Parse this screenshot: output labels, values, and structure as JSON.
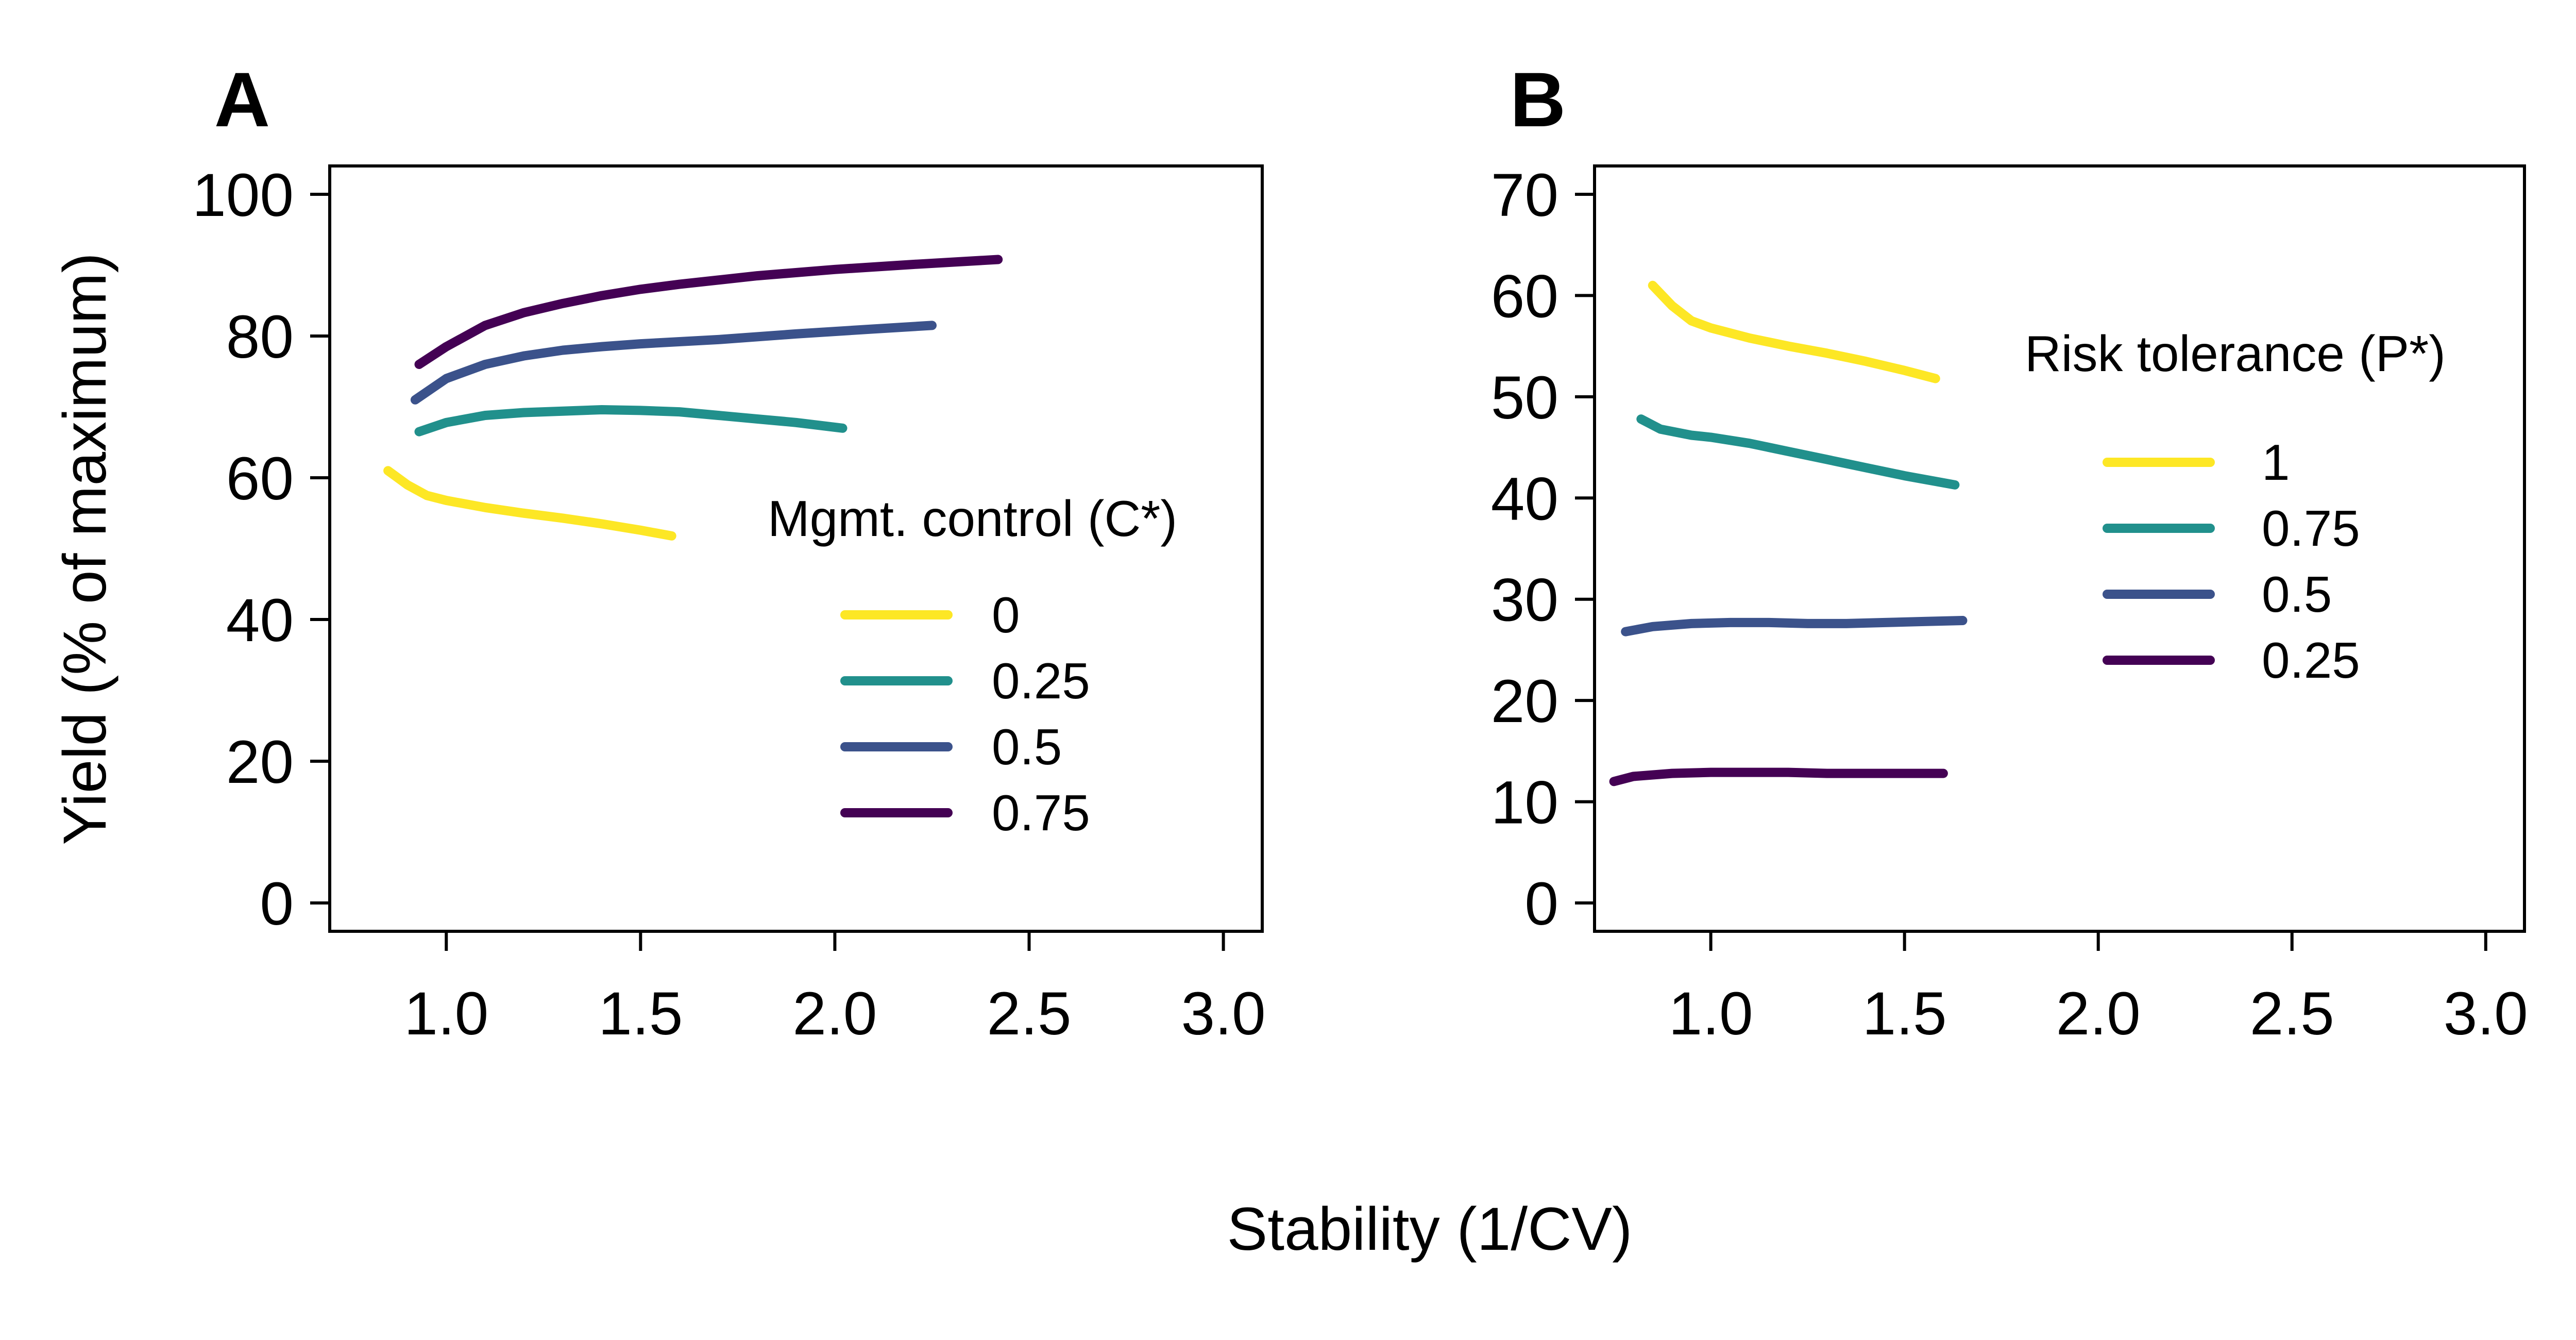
{
  "figure": {
    "shared_xlabel": "Stability (1/CV)"
  },
  "chart_data": [
    {
      "type": "line",
      "panel": "A",
      "xlabel": "",
      "ylabel": "Yield (% of maximum)",
      "xlim": [
        0.7,
        3.1
      ],
      "ylim": [
        -4,
        104
      ],
      "xticks": [
        1.0,
        1.5,
        2.0,
        2.5,
        3.0
      ],
      "xtick_labels": [
        "1.0",
        "1.5",
        "2.0",
        "2.5",
        "3.0"
      ],
      "yticks": [
        0,
        20,
        40,
        60,
        80,
        100
      ],
      "ytick_labels": [
        "0",
        "20",
        "40",
        "60",
        "80",
        "100"
      ],
      "grid": false,
      "legend": {
        "title": "Mgmt. control (C*)",
        "placement": "right-middle"
      },
      "series": [
        {
          "name": "0",
          "color": "#FDE725",
          "x": [
            0.85,
            0.9,
            0.95,
            1.0,
            1.1,
            1.2,
            1.3,
            1.4,
            1.5,
            1.58
          ],
          "y": [
            61,
            59,
            57.5,
            56.8,
            55.8,
            55,
            54.3,
            53.5,
            52.6,
            51.8
          ]
        },
        {
          "name": "0.25",
          "color": "#21908C",
          "x": [
            0.93,
            1.0,
            1.1,
            1.2,
            1.3,
            1.4,
            1.5,
            1.6,
            1.7,
            1.8,
            1.9,
            2.02
          ],
          "y": [
            66.5,
            67.8,
            68.8,
            69.2,
            69.4,
            69.6,
            69.5,
            69.3,
            68.8,
            68.3,
            67.8,
            67
          ]
        },
        {
          "name": "0.5",
          "color": "#3B528B",
          "x": [
            0.92,
            1.0,
            1.1,
            1.2,
            1.3,
            1.4,
            1.5,
            1.7,
            1.9,
            2.1,
            2.25
          ],
          "y": [
            71,
            74,
            76,
            77.2,
            78,
            78.5,
            78.9,
            79.5,
            80.3,
            81,
            81.5
          ]
        },
        {
          "name": "0.75",
          "color": "#440154",
          "x": [
            0.93,
            1.0,
            1.1,
            1.2,
            1.3,
            1.4,
            1.5,
            1.6,
            1.8,
            2.0,
            2.2,
            2.42
          ],
          "y": [
            76,
            78.5,
            81.5,
            83.3,
            84.6,
            85.7,
            86.6,
            87.3,
            88.5,
            89.4,
            90.1,
            90.8
          ]
        }
      ]
    },
    {
      "type": "line",
      "panel": "B",
      "xlabel": "",
      "ylabel": "",
      "xlim": [
        0.7,
        3.1
      ],
      "ylim": [
        -2.8,
        72.8
      ],
      "xticks": [
        1.0,
        1.5,
        2.0,
        2.5,
        3.0
      ],
      "xtick_labels": [
        "1.0",
        "1.5",
        "2.0",
        "2.5",
        "3.0"
      ],
      "yticks": [
        0,
        10,
        20,
        30,
        40,
        50,
        60,
        70
      ],
      "ytick_labels": [
        "0",
        "10",
        "20",
        "30",
        "40",
        "50",
        "60",
        "70"
      ],
      "grid": false,
      "legend": {
        "title": "Risk tolerance (P*)",
        "placement": "top-right"
      },
      "series": [
        {
          "name": "1",
          "color": "#FDE725",
          "x": [
            0.85,
            0.9,
            0.95,
            1.0,
            1.1,
            1.2,
            1.3,
            1.4,
            1.5,
            1.58
          ],
          "y": [
            61,
            59,
            57.5,
            56.8,
            55.8,
            55,
            54.3,
            53.5,
            52.6,
            51.8
          ]
        },
        {
          "name": "0.75",
          "color": "#21908C",
          "x": [
            0.82,
            0.87,
            0.95,
            1.0,
            1.1,
            1.2,
            1.3,
            1.4,
            1.5,
            1.63
          ],
          "y": [
            47.8,
            46.8,
            46.2,
            46,
            45.4,
            44.6,
            43.8,
            43,
            42.2,
            41.3
          ]
        },
        {
          "name": "0.5",
          "color": "#3B528B",
          "x": [
            0.78,
            0.85,
            0.95,
            1.05,
            1.15,
            1.25,
            1.35,
            1.45,
            1.55,
            1.65
          ],
          "y": [
            26.8,
            27.3,
            27.6,
            27.7,
            27.7,
            27.6,
            27.6,
            27.7,
            27.8,
            27.9
          ]
        },
        {
          "name": "0.25",
          "color": "#440154",
          "x": [
            0.75,
            0.8,
            0.9,
            1.0,
            1.1,
            1.2,
            1.3,
            1.4,
            1.5,
            1.6
          ],
          "y": [
            12,
            12.5,
            12.8,
            12.9,
            12.9,
            12.9,
            12.8,
            12.8,
            12.8,
            12.8
          ]
        }
      ]
    }
  ]
}
